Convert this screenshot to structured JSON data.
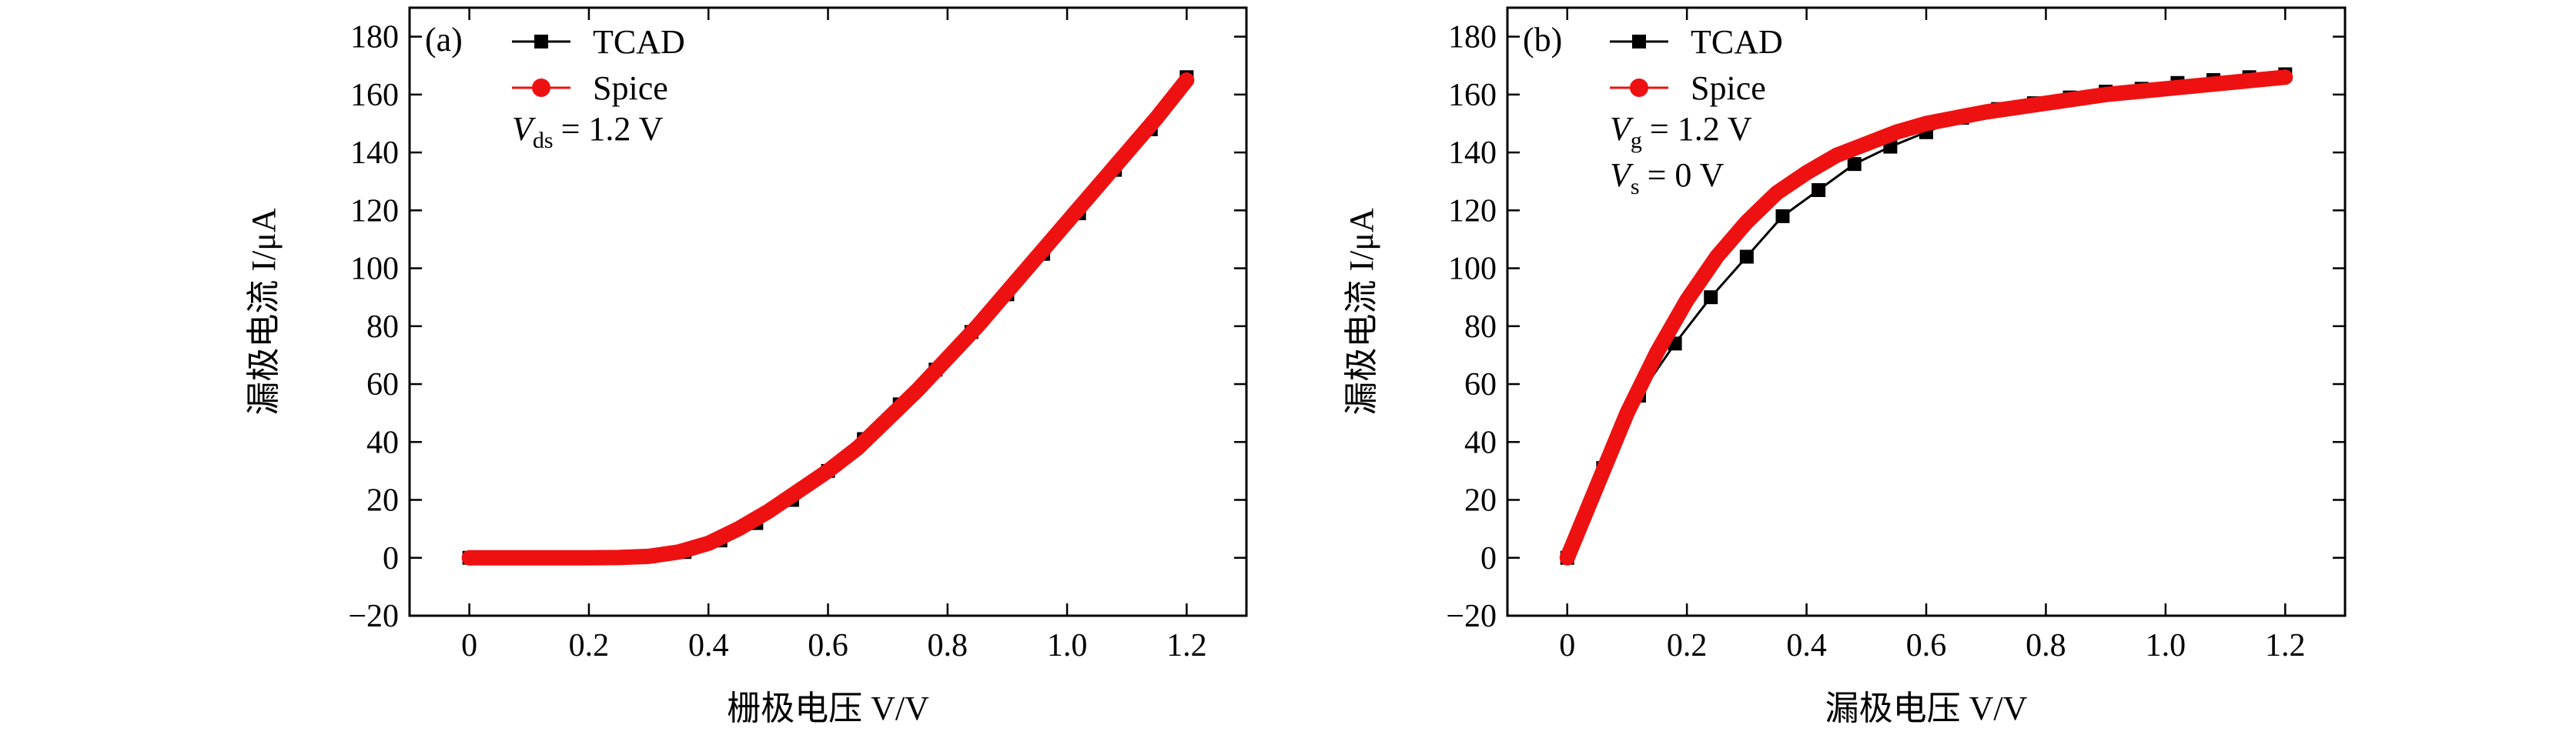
{
  "chart_data": [
    {
      "type": "line",
      "panel_label": "(a)",
      "xlabel": "栅极电压 V/V",
      "ylabel": "漏极电流 I/μA",
      "xlim": [
        -0.1,
        1.3
      ],
      "ylim": [
        -20,
        190
      ],
      "xticks": [
        0,
        0.2,
        0.4,
        0.6,
        0.8,
        {
          "value": 1,
          "label": "1.0"
        },
        1.2
      ],
      "yticks": [
        {
          "value": -20,
          "label": "−20"
        },
        0,
        20,
        40,
        60,
        80,
        100,
        120,
        140,
        160,
        180
      ],
      "annotations": [
        {
          "symbol": "V",
          "sub": "ds",
          "text": "= 1.2 V"
        }
      ],
      "series": [
        {
          "name": "TCAD",
          "color": "#000000",
          "marker": "square",
          "x": [
            0,
            0.06,
            0.12,
            0.18,
            0.24,
            0.3,
            0.36,
            0.42,
            0.48,
            0.54,
            0.6,
            0.66,
            0.72,
            0.78,
            0.84,
            0.9,
            0.96,
            1.02,
            1.08,
            1.14,
            1.2
          ],
          "values": [
            0,
            0,
            0,
            0,
            0.1,
            0.5,
            2,
            6,
            12,
            20,
            30,
            41,
            53,
            65,
            78,
            91,
            105,
            119,
            134,
            148,
            166
          ]
        },
        {
          "name": "Spice",
          "color": "#ee1111",
          "marker": "circle",
          "x": [
            0,
            0.05,
            0.1,
            0.15,
            0.2,
            0.25,
            0.3,
            0.35,
            0.4,
            0.45,
            0.5,
            0.55,
            0.6,
            0.65,
            0.7,
            0.75,
            0.8,
            0.85,
            0.9,
            0.95,
            1.0,
            1.05,
            1.1,
            1.15,
            1.2
          ],
          "values": [
            0,
            0,
            0,
            0,
            0,
            0.1,
            0.5,
            2,
            5,
            10,
            16,
            23,
            30,
            38,
            48,
            58,
            69,
            80,
            92,
            104,
            116,
            128,
            140,
            152,
            165
          ]
        }
      ]
    },
    {
      "type": "line",
      "panel_label": "(b)",
      "xlabel": "漏极电压 V/V",
      "ylabel": "漏极电流 I/μA",
      "xlim": [
        -0.1,
        1.3
      ],
      "ylim": [
        -20,
        190
      ],
      "xticks": [
        0,
        0.2,
        0.4,
        0.6,
        0.8,
        {
          "value": 1,
          "label": "1.0"
        },
        1.2
      ],
      "yticks": [
        {
          "value": -20,
          "label": "−20"
        },
        0,
        20,
        40,
        60,
        80,
        100,
        120,
        140,
        160,
        180
      ],
      "annotations": [
        {
          "symbol": "V",
          "sub": "g",
          "text": "= 1.2 V"
        },
        {
          "symbol": "V",
          "sub": "s",
          "text": "= 0 V"
        }
      ],
      "series": [
        {
          "name": "TCAD",
          "color": "#000000",
          "marker": "square",
          "x": [
            0,
            0.06,
            0.12,
            0.18,
            0.24,
            0.3,
            0.36,
            0.42,
            0.48,
            0.54,
            0.6,
            0.66,
            0.72,
            0.78,
            0.84,
            0.9,
            0.96,
            1.02,
            1.08,
            1.14,
            1.2
          ],
          "values": [
            0,
            31,
            56,
            74,
            90,
            104,
            118,
            127,
            136,
            142,
            147,
            152,
            155,
            157,
            159,
            161,
            162,
            164,
            165,
            166,
            167
          ]
        },
        {
          "name": "Spice",
          "color": "#ee1111",
          "marker": "circle",
          "x": [
            0,
            0.05,
            0.1,
            0.15,
            0.2,
            0.25,
            0.3,
            0.35,
            0.4,
            0.45,
            0.5,
            0.55,
            0.6,
            0.7,
            0.8,
            0.9,
            1.0,
            1.1,
            1.2
          ],
          "values": [
            0,
            25,
            50,
            71,
            89,
            104,
            116,
            126,
            133,
            139,
            143,
            147,
            150,
            154,
            157,
            160,
            162,
            164,
            166
          ]
        }
      ]
    }
  ]
}
